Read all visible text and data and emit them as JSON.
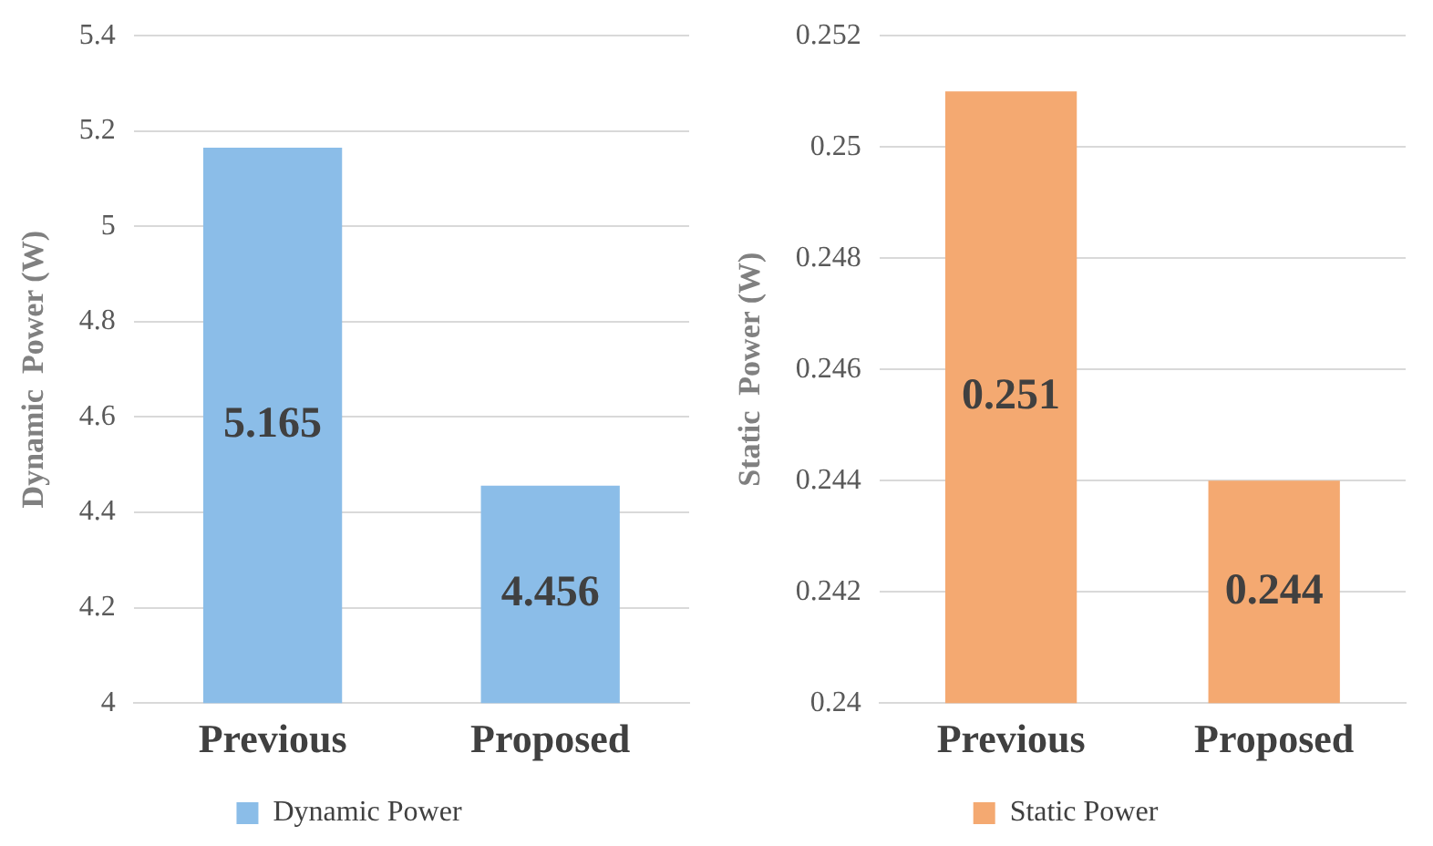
{
  "chart_data": [
    {
      "type": "bar",
      "ylabel": "Dynamic  Power (W)",
      "categories": [
        "Previous",
        "Proposed"
      ],
      "series": [
        {
          "name": "Dynamic Power",
          "color": "#8bbde8",
          "values": [
            5.165,
            4.456
          ]
        }
      ],
      "ylim": [
        4,
        5.4
      ],
      "yticks": [
        4,
        4.2,
        4.4,
        4.6,
        4.8,
        5,
        5.2,
        5.4
      ],
      "grid": "y",
      "legend": "bottom",
      "data_labels": true
    },
    {
      "type": "bar",
      "ylabel": "Static  Power (W)",
      "categories": [
        "Previous",
        "Proposed"
      ],
      "series": [
        {
          "name": "Static Power",
          "color": "#f4a971",
          "values": [
            0.251,
            0.244
          ]
        }
      ],
      "ylim": [
        0.24,
        0.252
      ],
      "yticks": [
        0.24,
        0.242,
        0.244,
        0.246,
        0.248,
        0.25,
        0.252
      ],
      "grid": "y",
      "legend": "bottom",
      "data_labels": true
    }
  ]
}
